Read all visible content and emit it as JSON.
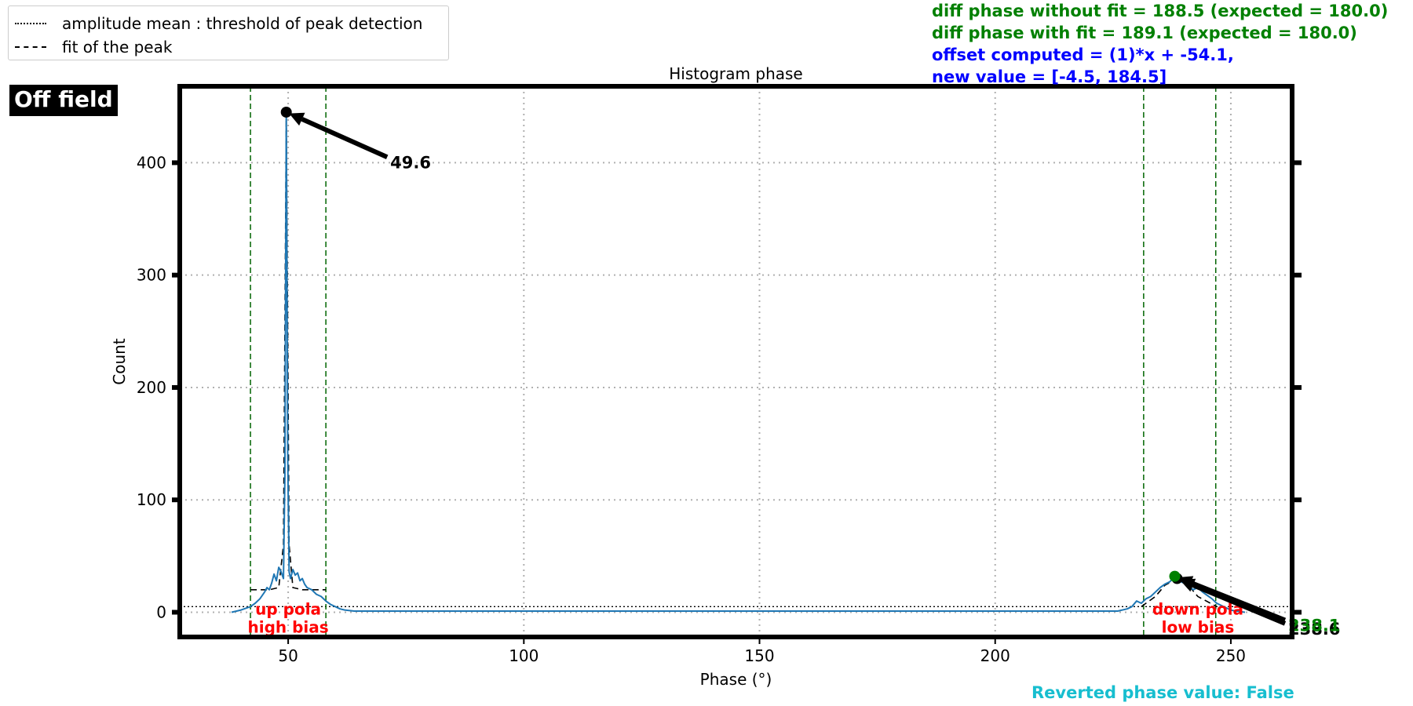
{
  "badge": {
    "label": "Off field"
  },
  "legend": [
    {
      "label": "amplitude mean : threshold of peak detection",
      "style": "dotted"
    },
    {
      "label": "fit of the peak",
      "style": "dashed"
    }
  ],
  "info_lines": [
    {
      "text": "diff phase without fit = 188.5 (expected = 180.0)",
      "color": "#008000"
    },
    {
      "text": "diff phase with fit = 189.1 (expected = 180.0)",
      "color": "#008000"
    },
    {
      "text": "offset computed = (1)*x + -54.1,",
      "color": "#0000ff"
    },
    {
      "text": "new value = [-4.5, 184.5]",
      "color": "#0000ff"
    }
  ],
  "footer": {
    "reverted_text": "Reverted phase value: False",
    "color": "#17becf"
  },
  "chart_data": {
    "type": "line",
    "title": "Histogram phase",
    "xlabel": "Phase (°)",
    "ylabel": "Count",
    "xlim": [
      27,
      263
    ],
    "ylim": [
      -22,
      468
    ],
    "xticks": [
      50,
      100,
      150,
      200,
      250
    ],
    "yticks": [
      0,
      100,
      200,
      300,
      400
    ],
    "grid": true,
    "legend_position": "top-left",
    "threshold": 5,
    "series": [
      {
        "color": "#1f77b4",
        "x": [
          38,
          40,
          42,
          43,
          44,
          45,
          45.5,
          46,
          46.5,
          47,
          47.5,
          48,
          48.5,
          49,
          49.3,
          49.6,
          49.9,
          50.2,
          50.5,
          51,
          51.5,
          52,
          52.5,
          53,
          53.5,
          54,
          55,
          56,
          57,
          58,
          59,
          60,
          61,
          62,
          64,
          70,
          100,
          150,
          200,
          226,
          228,
          229,
          230,
          231,
          232,
          233,
          234,
          235,
          236,
          237,
          238,
          238.6,
          239,
          240,
          241,
          242,
          243,
          244,
          245,
          246,
          247,
          248,
          249,
          250,
          251,
          253
        ],
        "y": [
          0,
          2,
          5,
          8,
          12,
          18,
          22,
          20,
          26,
          34,
          28,
          40,
          36,
          30,
          120,
          445,
          140,
          36,
          30,
          38,
          33,
          35,
          28,
          30,
          25,
          22,
          20,
          16,
          14,
          10,
          7,
          5,
          3,
          2,
          1,
          1,
          1,
          1,
          1,
          1,
          3,
          5,
          10,
          8,
          12,
          14,
          18,
          22,
          25,
          27,
          31,
          30,
          28,
          26,
          24,
          20,
          22,
          18,
          15,
          12,
          8,
          6,
          4,
          2,
          1,
          0
        ]
      }
    ],
    "fit_peaks": [
      {
        "x": [
          42,
          46,
          48,
          49,
          49.6,
          50.2,
          51,
          53,
          58
        ],
        "y": [
          20,
          20,
          22,
          60,
          445,
          60,
          22,
          20,
          20
        ]
      },
      {
        "x": [
          231,
          234,
          236,
          238.6,
          241,
          243,
          247
        ],
        "y": [
          5,
          14,
          24,
          30,
          24,
          14,
          5
        ]
      }
    ],
    "region_lines": [
      42,
      58,
      231.5,
      246.8
    ],
    "peaks": [
      {
        "x": 49.6,
        "y": 445,
        "label": "49.6",
        "label_x": 71,
        "label_y": 405,
        "marker": "#000000",
        "label_color": "#000000"
      },
      {
        "x": 238.6,
        "y": 30,
        "label": "238.6",
        "label_x": 261.5,
        "label_y": -10,
        "marker": "#000000",
        "label_color": "#000000"
      },
      {
        "x": 238.1,
        "y": 32,
        "label": "238.1",
        "label_x": 261.5,
        "label_y": -7,
        "marker": "#008000",
        "label_color": "#008000"
      }
    ],
    "annotations": [
      {
        "text": "up pola",
        "x": 50,
        "y": -2,
        "color": "#ff0000"
      },
      {
        "text": "high bias",
        "x": 50,
        "y": -18,
        "color": "#ff0000"
      },
      {
        "text": "down pola",
        "x": 243,
        "y": -2,
        "color": "#ff0000"
      },
      {
        "text": "low bias",
        "x": 243,
        "y": -18,
        "color": "#ff0000"
      }
    ]
  }
}
